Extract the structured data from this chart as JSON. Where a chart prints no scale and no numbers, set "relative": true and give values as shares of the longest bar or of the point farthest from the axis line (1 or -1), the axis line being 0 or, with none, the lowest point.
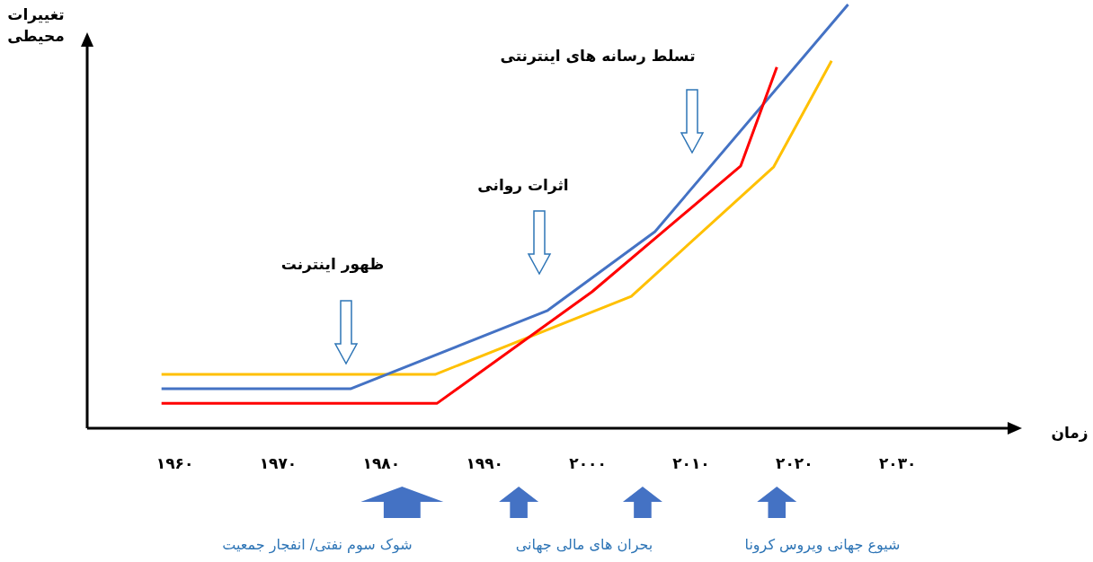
{
  "chart_data": {
    "type": "line",
    "relative": true,
    "xlabel": "زمان",
    "ylabel": "تغییرات محیطی",
    "xlim": [
      1951.5,
      2041
    ],
    "xticks": [
      {
        "value": 1960,
        "label": "۱۹۶۰"
      },
      {
        "value": 1970,
        "label": "۱۹۷۰"
      },
      {
        "value": 1980,
        "label": "۱۹۸۰"
      },
      {
        "value": 1990,
        "label": "۱۹۹۰"
      },
      {
        "value": 2000,
        "label": "۲۰۰۰"
      },
      {
        "value": 2010,
        "label": "۲۰۱۰"
      },
      {
        "value": 2020,
        "label": "۲۰۲۰"
      },
      {
        "value": 2030,
        "label": "۲۰۳۰"
      }
    ],
    "series": [
      {
        "color": "#ffc000",
        "x": [
          1958.7,
          1985.2,
          2004.2,
          2018,
          2023.6
        ],
        "values": [
          0.127,
          0.127,
          0.311,
          0.617,
          0.867
        ]
      },
      {
        "color": "#4472c4",
        "x": [
          1958.7,
          1977,
          1996.1,
          2006.5,
          2025.2
        ],
        "values": [
          0.093,
          0.093,
          0.278,
          0.464,
          1
        ]
      },
      {
        "color": "#ff0000",
        "x": [
          1958.7,
          1985.4,
          2000.4,
          2014.8,
          2018.3
        ],
        "values": [
          0.059,
          0.059,
          0.322,
          0.619,
          0.852
        ]
      }
    ],
    "annotations": [
      "ظهور اینترنت",
      "اثرات روانی",
      "تسلط رسانه های اینترنتی",
      "شوک سوم نفتی/ انفجار جمعیت",
      "بحران های مالی جهانی",
      "شیوع جهانی ویروس کرونا"
    ],
    "grid": false,
    "line_style": "solid",
    "marker": "none"
  }
}
